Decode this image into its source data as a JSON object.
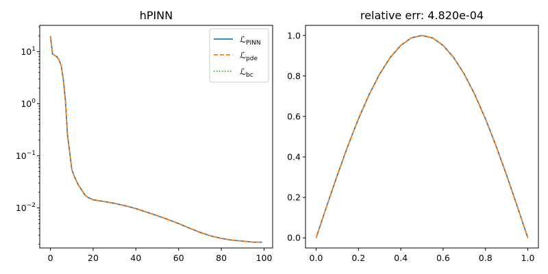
{
  "chart_data": [
    {
      "type": "line",
      "title": "hPINN",
      "xlabel": "",
      "ylabel": "",
      "yscale": "log",
      "xlim": [
        -5,
        104
      ],
      "ylim": [
        0.0017,
        32
      ],
      "xticks": [
        0,
        20,
        40,
        60,
        80,
        100
      ],
      "xtick_labels": [
        "0",
        "20",
        "40",
        "60",
        "80",
        "100"
      ],
      "yticks": [
        0.01,
        0.1,
        1,
        10
      ],
      "ytick_labels": [
        "10^-2",
        "10^-1",
        "10^0",
        "10^1"
      ],
      "legend_position": "top-right",
      "series": [
        {
          "name": "L_PINN",
          "color": "#1f77b4",
          "style": "solid",
          "x": [
            0,
            1,
            2,
            3,
            4,
            5,
            6,
            7,
            8,
            9,
            10,
            11,
            12,
            13,
            14,
            15,
            16,
            17,
            18,
            19,
            20,
            25,
            30,
            35,
            40,
            45,
            50,
            55,
            60,
            65,
            70,
            75,
            80,
            85,
            90,
            95,
            99
          ],
          "y": [
            20,
            9,
            8.5,
            8,
            7,
            5.5,
            3,
            1.2,
            0.25,
            0.12,
            0.055,
            0.042,
            0.034,
            0.028,
            0.024,
            0.021,
            0.018,
            0.0165,
            0.0155,
            0.015,
            0.0143,
            0.0133,
            0.0122,
            0.011,
            0.0097,
            0.0083,
            0.0071,
            0.006,
            0.005,
            0.0041,
            0.0034,
            0.0029,
            0.0026,
            0.0024,
            0.0023,
            0.0022,
            0.0022
          ]
        },
        {
          "name": "L_pde",
          "color": "#ff7f0e",
          "style": "dashed",
          "x": [
            0,
            1,
            2,
            3,
            4,
            5,
            6,
            7,
            8,
            9,
            10,
            11,
            12,
            13,
            14,
            15,
            16,
            17,
            18,
            19,
            20,
            25,
            30,
            35,
            40,
            45,
            50,
            55,
            60,
            65,
            70,
            75,
            80,
            85,
            90,
            95,
            99
          ],
          "y": [
            20,
            9,
            8.5,
            8,
            7,
            5.5,
            3,
            1.2,
            0.25,
            0.12,
            0.055,
            0.042,
            0.034,
            0.028,
            0.024,
            0.021,
            0.018,
            0.0165,
            0.0155,
            0.015,
            0.0143,
            0.0133,
            0.0122,
            0.011,
            0.0097,
            0.0083,
            0.0071,
            0.006,
            0.005,
            0.0041,
            0.0034,
            0.0029,
            0.0026,
            0.0024,
            0.0023,
            0.0022,
            0.0022
          ]
        },
        {
          "name": "L_bc",
          "color": "#2ca02c",
          "style": "dotted",
          "x": [],
          "y": []
        }
      ],
      "legend": [
        {
          "main": "ℒ",
          "sub": "PINN"
        },
        {
          "main": "ℒ",
          "sub": "pde"
        },
        {
          "main": "ℒ",
          "sub": "bc"
        }
      ]
    },
    {
      "type": "line",
      "title": "relative err: 4.820e-04",
      "xlabel": "",
      "ylabel": "",
      "xlim": [
        -0.05,
        1.05
      ],
      "ylim": [
        -0.05,
        1.05
      ],
      "xticks": [
        0.0,
        0.2,
        0.4,
        0.6,
        0.8,
        1.0
      ],
      "xtick_labels": [
        "0.0",
        "0.2",
        "0.4",
        "0.6",
        "0.8",
        "1.0"
      ],
      "yticks": [
        0.0,
        0.2,
        0.4,
        0.6,
        0.8,
        1.0
      ],
      "ytick_labels": [
        "0.0",
        "0.2",
        "0.4",
        "0.6",
        "0.8",
        "1.0"
      ],
      "series": [
        {
          "name": "",
          "color": "#1f77b4",
          "style": "solid",
          "x": [
            0.0,
            0.05,
            0.1,
            0.15,
            0.2,
            0.25,
            0.3,
            0.35,
            0.4,
            0.45,
            0.5,
            0.55,
            0.6,
            0.65,
            0.7,
            0.75,
            0.8,
            0.85,
            0.9,
            0.95,
            1.0
          ],
          "y": [
            0.0,
            0.156,
            0.309,
            0.454,
            0.588,
            0.707,
            0.809,
            0.891,
            0.951,
            0.988,
            1.0,
            0.988,
            0.951,
            0.891,
            0.809,
            0.707,
            0.588,
            0.454,
            0.309,
            0.156,
            0.0
          ]
        },
        {
          "name": "",
          "color": "#ff7f0e",
          "style": "dashed",
          "x": [
            0.0,
            0.05,
            0.1,
            0.15,
            0.2,
            0.25,
            0.3,
            0.35,
            0.4,
            0.45,
            0.5,
            0.55,
            0.6,
            0.65,
            0.7,
            0.75,
            0.8,
            0.85,
            0.9,
            0.95,
            1.0
          ],
          "y": [
            0.0,
            0.156,
            0.309,
            0.454,
            0.588,
            0.707,
            0.809,
            0.891,
            0.951,
            0.988,
            1.0,
            0.988,
            0.951,
            0.891,
            0.809,
            0.707,
            0.588,
            0.454,
            0.309,
            0.156,
            0.0
          ]
        }
      ]
    }
  ]
}
